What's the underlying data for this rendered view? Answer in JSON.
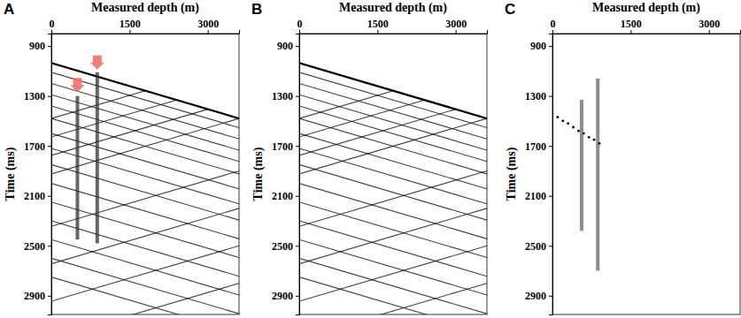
{
  "chart_data": [
    {
      "type": "seismic",
      "title": "A",
      "xlabel": "Measured depth (m)",
      "ylabel": "Time (ms)",
      "xlim": [
        0,
        3600
      ],
      "xticks": [
        0,
        1500,
        3000
      ],
      "ylim": [
        800,
        3050
      ],
      "yticks": [
        900,
        1300,
        1700,
        2100,
        2500,
        2900
      ],
      "color": "#000000",
      "events": [
        {
          "x": [
            0,
            3600
          ],
          "y": [
            1036,
            1480
          ]
        },
        {
          "x": [
            0,
            3600
          ],
          "y": [
            1110,
            1554
          ]
        },
        {
          "x": [
            0,
            3600
          ],
          "y": [
            1200,
            1644
          ]
        },
        {
          "x": [
            0,
            3600
          ],
          "y": [
            1290,
            1734
          ]
        },
        {
          "x": [
            0,
            3600
          ],
          "y": [
            1380,
            1824
          ]
        },
        {
          "x": [
            0,
            3600
          ],
          "y": [
            1480,
            1924
          ]
        },
        {
          "x": [
            0,
            3600
          ],
          "y": [
            1600,
            2044
          ]
        },
        {
          "x": [
            0,
            3600
          ],
          "y": [
            1720,
            2164
          ]
        },
        {
          "x": [
            0,
            3600
          ],
          "y": [
            1850,
            2294
          ]
        },
        {
          "x": [
            0,
            3600
          ],
          "y": [
            2000,
            2444
          ]
        },
        {
          "x": [
            0,
            3600
          ],
          "y": [
            2150,
            2594
          ]
        },
        {
          "x": [
            0,
            3600
          ],
          "y": [
            2300,
            2744
          ]
        },
        {
          "x": [
            0,
            3600
          ],
          "y": [
            2450,
            2894
          ]
        },
        {
          "x": [
            0,
            3600
          ],
          "y": [
            2600,
            3044
          ]
        },
        {
          "x": [
            0,
            3600
          ],
          "y": [
            2750,
            3194
          ]
        },
        {
          "x": [
            3600,
            0
          ],
          "y": [
            1480,
            1924
          ]
        },
        {
          "x": [
            3000,
            0
          ],
          "y": [
            1406,
            1776
          ]
        },
        {
          "x": [
            2400,
            0
          ],
          "y": [
            1332,
            1628
          ]
        },
        {
          "x": [
            1800,
            0
          ],
          "y": [
            1258,
            1480
          ]
        },
        {
          "x": [
            3600,
            0
          ],
          "y": [
            1900,
            2344
          ]
        },
        {
          "x": [
            3600,
            0
          ],
          "y": [
            2200,
            2644
          ]
        },
        {
          "x": [
            3600,
            0
          ],
          "y": [
            2500,
            2944
          ]
        },
        {
          "x": [
            3600,
            0
          ],
          "y": [
            2800,
            3244
          ]
        }
      ],
      "noise": [
        {
          "color": "#333333",
          "x": [
            500,
            500
          ],
          "y": [
            1300,
            2450
          ]
        },
        {
          "color": "#333333",
          "x": [
            880,
            880
          ],
          "y": [
            1110,
            2480
          ]
        }
      ],
      "arrows": {
        "color": "#f07070",
        "x": [
          880,
          500
        ],
        "y": [
          1060,
          1240
        ]
      }
    },
    {
      "type": "seismic",
      "title": "B",
      "xlabel": "Measured depth (m)",
      "ylabel": "Time (ms)",
      "xlim": [
        0,
        3600
      ],
      "xticks": [
        0,
        1500,
        3000
      ],
      "ylim": [
        800,
        3050
      ],
      "yticks": [
        900,
        1300,
        1700,
        2100,
        2500,
        2900
      ],
      "color": "#000000",
      "events": [
        {
          "x": [
            0,
            3600
          ],
          "y": [
            1036,
            1480
          ]
        },
        {
          "x": [
            0,
            3600
          ],
          "y": [
            1110,
            1554
          ]
        },
        {
          "x": [
            0,
            3600
          ],
          "y": [
            1200,
            1644
          ]
        },
        {
          "x": [
            0,
            3600
          ],
          "y": [
            1290,
            1734
          ]
        },
        {
          "x": [
            0,
            3600
          ],
          "y": [
            1380,
            1824
          ]
        },
        {
          "x": [
            0,
            3600
          ],
          "y": [
            1480,
            1924
          ]
        },
        {
          "x": [
            0,
            3600
          ],
          "y": [
            1600,
            2044
          ]
        },
        {
          "x": [
            0,
            3600
          ],
          "y": [
            1720,
            2164
          ]
        },
        {
          "x": [
            0,
            3600
          ],
          "y": [
            1850,
            2294
          ]
        },
        {
          "x": [
            0,
            3600
          ],
          "y": [
            2000,
            2444
          ]
        },
        {
          "x": [
            0,
            3600
          ],
          "y": [
            2150,
            2594
          ]
        },
        {
          "x": [
            0,
            3600
          ],
          "y": [
            2300,
            2744
          ]
        },
        {
          "x": [
            0,
            3600
          ],
          "y": [
            2450,
            2894
          ]
        },
        {
          "x": [
            0,
            3600
          ],
          "y": [
            2600,
            3044
          ]
        },
        {
          "x": [
            0,
            3600
          ],
          "y": [
            2750,
            3194
          ]
        },
        {
          "x": [
            3600,
            0
          ],
          "y": [
            1480,
            1924
          ]
        },
        {
          "x": [
            3000,
            0
          ],
          "y": [
            1406,
            1776
          ]
        },
        {
          "x": [
            2400,
            0
          ],
          "y": [
            1332,
            1628
          ]
        },
        {
          "x": [
            1800,
            0
          ],
          "y": [
            1258,
            1480
          ]
        },
        {
          "x": [
            3600,
            0
          ],
          "y": [
            1900,
            2344
          ]
        },
        {
          "x": [
            3600,
            0
          ],
          "y": [
            2200,
            2644
          ]
        },
        {
          "x": [
            3600,
            0
          ],
          "y": [
            2500,
            2944
          ]
        },
        {
          "x": [
            3600,
            0
          ],
          "y": [
            2800,
            3244
          ]
        }
      ]
    },
    {
      "type": "seismic",
      "title": "C",
      "xlabel": "Measured depth (m)",
      "ylabel": "Time (ms)",
      "xlim": [
        0,
        3600
      ],
      "xticks": [
        0,
        1500,
        3000
      ],
      "ylim": [
        800,
        3050
      ],
      "yticks": [
        900,
        1300,
        1700,
        2100,
        2500,
        2900
      ],
      "color": "#000000",
      "noise": [
        {
          "color": "#666666",
          "x": [
            560,
            560
          ],
          "y": [
            1330,
            2380
          ]
        },
        {
          "color": "#666666",
          "x": [
            870,
            870
          ],
          "y": [
            1160,
            2700
          ]
        }
      ],
      "picks": {
        "color": "#000000",
        "marker": "circle",
        "x": [
          0,
          100,
          200,
          300,
          400,
          500,
          600,
          700,
          800,
          900
        ],
        "y": [
          1440,
          1470,
          1500,
          1520,
          1550,
          1580,
          1600,
          1630,
          1650,
          1680
        ]
      }
    }
  ]
}
